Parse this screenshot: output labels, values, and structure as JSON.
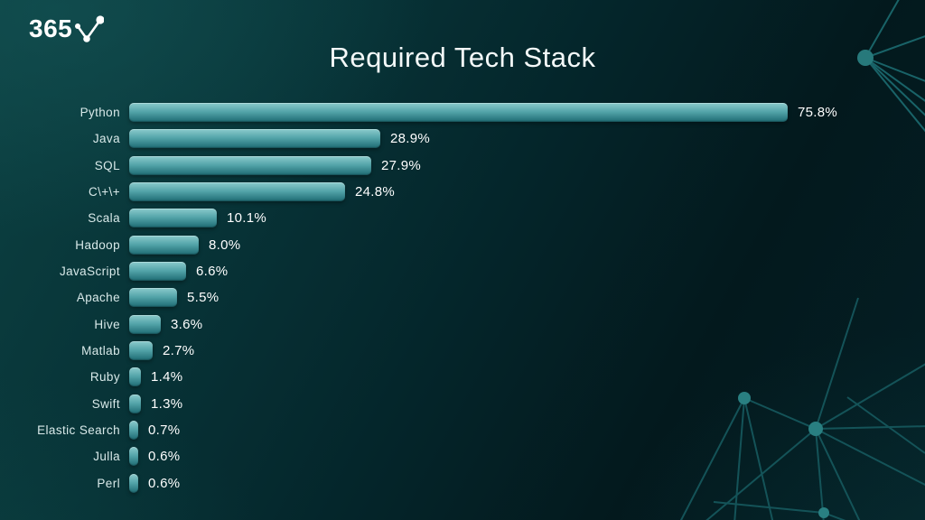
{
  "logo": {
    "text": "365",
    "icon": "line-chart-check-icon"
  },
  "title": "Required Tech Stack",
  "chart_data": {
    "type": "bar",
    "orientation": "horizontal",
    "title": "Required Tech Stack",
    "xlabel": "",
    "ylabel": "",
    "xlim": [
      0,
      80
    ],
    "grid": false,
    "legend": null,
    "value_suffix": "%",
    "categories": [
      "Python",
      "Java",
      "SQL",
      "C\\+\\+",
      "Scala",
      "Hadoop",
      "JavaScript",
      "Apache",
      "Hive",
      "Matlab",
      "Ruby",
      "Swift",
      "Elastic Search",
      "Julla",
      "Perl"
    ],
    "values": [
      75.8,
      28.9,
      27.9,
      24.8,
      10.1,
      8.0,
      6.6,
      5.5,
      3.6,
      2.7,
      1.4,
      1.3,
      0.7,
      0.6,
      0.6
    ],
    "value_labels": [
      "75.8%",
      "28.9%",
      "27.9%",
      "24.8%",
      "10.1%",
      "8.0%",
      "6.6%",
      "5.5%",
      "3.6%",
      "2.7%",
      "1.4%",
      "1.3%",
      "0.7%",
      "0.6%",
      "0.6%"
    ]
  },
  "colors": {
    "background_dark": "#03191d",
    "background_light": "#0d4546",
    "bar_top": "#8bcbcc",
    "bar_bottom": "#1e6b73",
    "label_text": "#d8e9e9",
    "value_text": "#ffffff",
    "network_line": "#16595e",
    "network_node": "#2e8a8c"
  }
}
